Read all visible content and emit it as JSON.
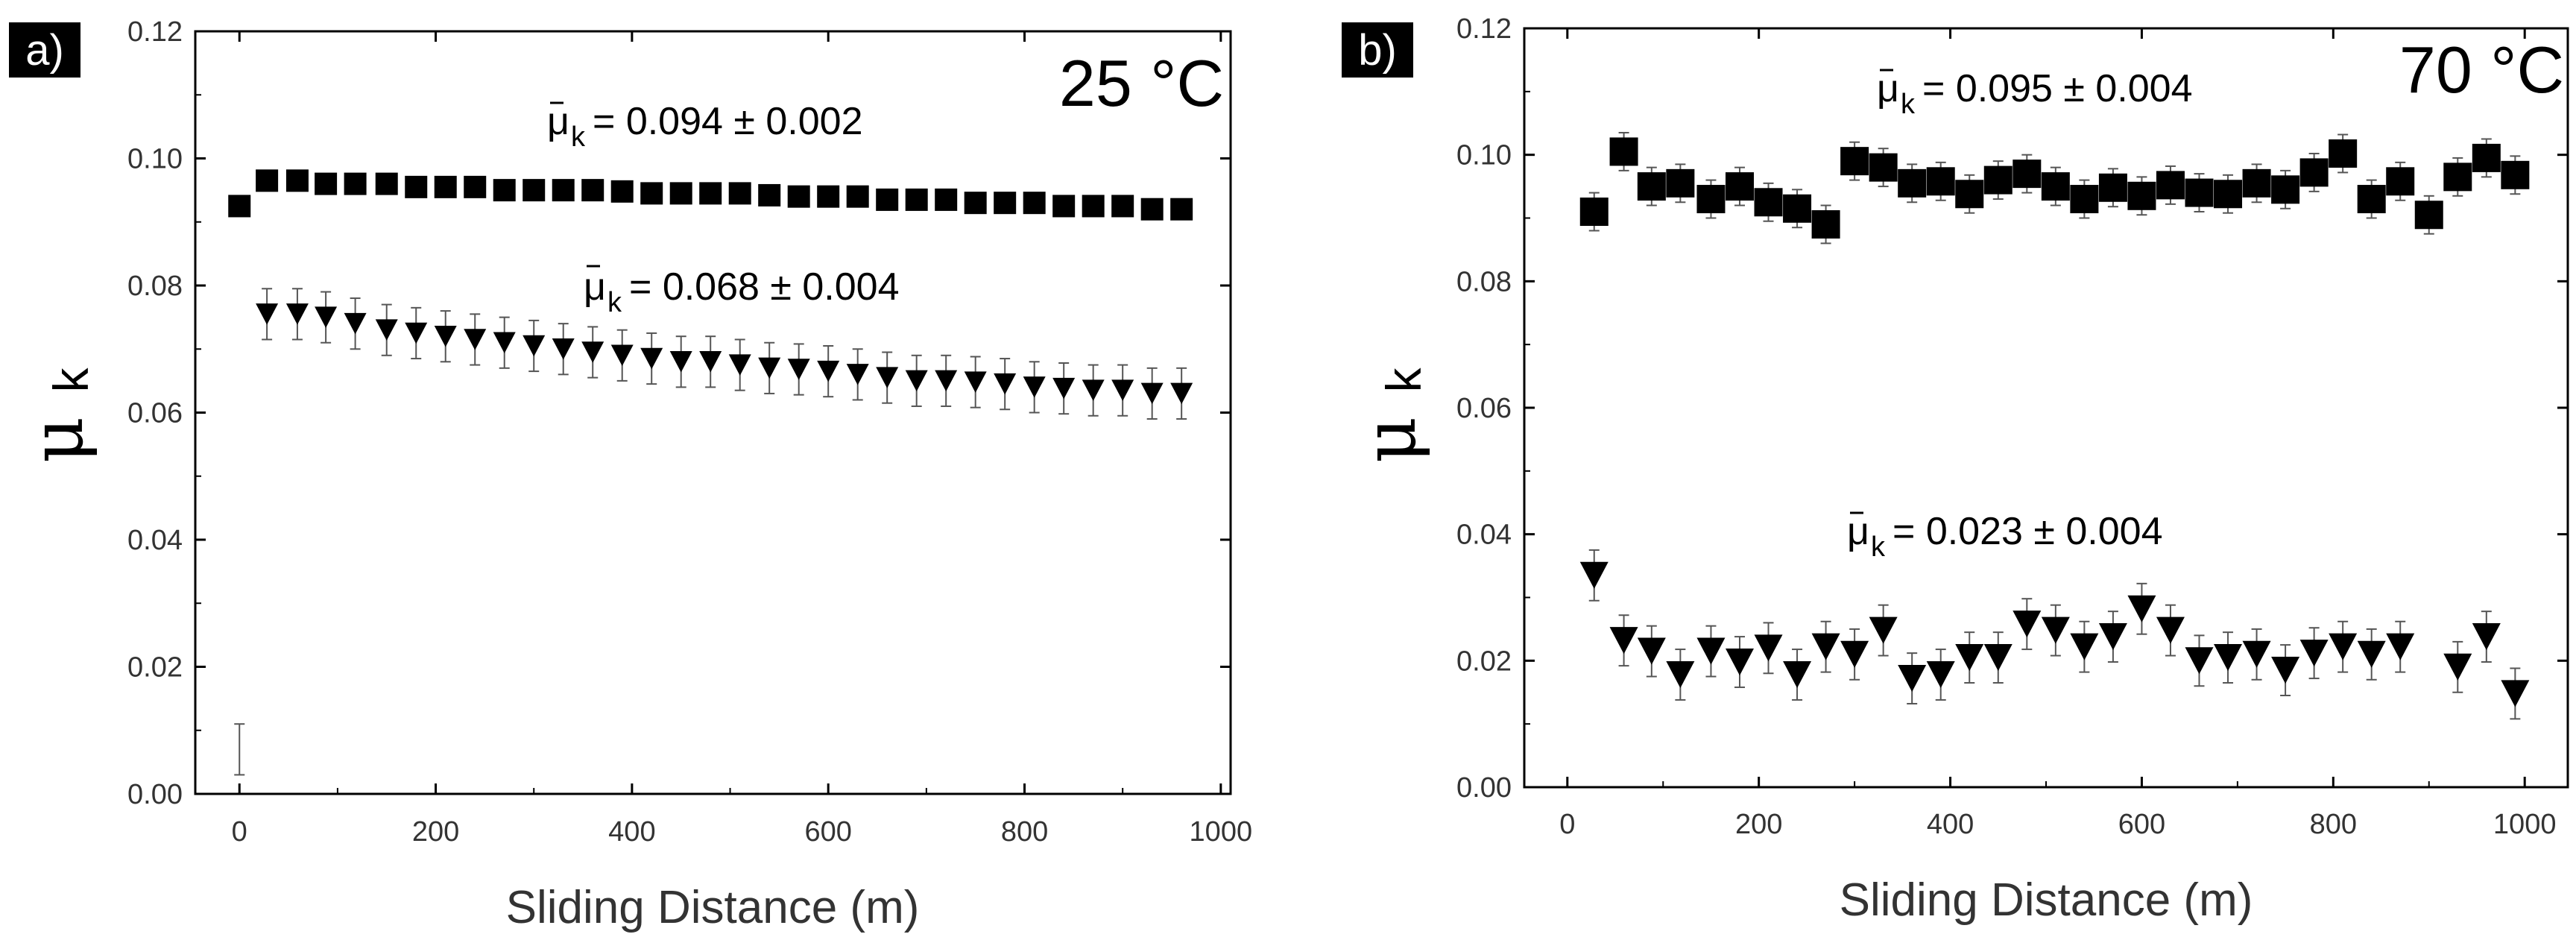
{
  "chart_data": [
    {
      "type": "scatter",
      "panel_label": "a)",
      "temperature_label": "25 °C",
      "xlabel": "Sliding Distance (m)",
      "ylabel": "μ",
      "ylabel_sub": "k",
      "xlim": [
        -45,
        1010
      ],
      "ylim": [
        0.0,
        0.12
      ],
      "xticks": [
        "0",
        "200",
        "400",
        "600",
        "800",
        "1000"
      ],
      "yticks": [
        "0.00",
        "0.02",
        "0.04",
        "0.06",
        "0.08",
        "0.10",
        "0.12"
      ],
      "series": [
        {
          "name": "squares",
          "marker": "square",
          "annotation_sym": "μ",
          "annotation_sub": "k",
          "annotation_value": "= 0.094 ± 0.002",
          "x": [
            0,
            28,
            59,
            88,
            118,
            150,
            180,
            210,
            240,
            270,
            300,
            330,
            360,
            390,
            420,
            450,
            480,
            510,
            540,
            570,
            600,
            630,
            660,
            690,
            720,
            750,
            780,
            810,
            840,
            870,
            900,
            930,
            960
          ],
          "y": [
            0.0925,
            0.0965,
            0.0965,
            0.096,
            0.096,
            0.096,
            0.0955,
            0.0955,
            0.0955,
            0.095,
            0.095,
            0.095,
            0.095,
            0.0948,
            0.0945,
            0.0945,
            0.0945,
            0.0945,
            0.0942,
            0.094,
            0.094,
            0.094,
            0.0935,
            0.0935,
            0.0935,
            0.093,
            0.093,
            0.093,
            0.0925,
            0.0925,
            0.0925,
            0.092,
            0.092
          ],
          "err": [
            0.0005,
            0.0005,
            0.0005,
            0.0005,
            0.0005,
            0.0005,
            0.0005,
            0.0005,
            0.0005,
            0.0005,
            0.0005,
            0.0005,
            0.0005,
            0.0005,
            0.0005,
            0.0005,
            0.0005,
            0.0005,
            0.0005,
            0.0005,
            0.0005,
            0.0005,
            0.0005,
            0.0005,
            0.0005,
            0.0005,
            0.0005,
            0.0005,
            0.0005,
            0.0005,
            0.0005,
            0.0005,
            0.0005
          ]
        },
        {
          "name": "triangles",
          "marker": "triangle-down",
          "annotation_sym": "μ",
          "annotation_sub": "k",
          "annotation_value": "= 0.068 ± 0.004",
          "x": [
            0,
            28,
            59,
            88,
            118,
            150,
            180,
            210,
            240,
            270,
            300,
            330,
            360,
            390,
            420,
            450,
            480,
            510,
            540,
            570,
            600,
            630,
            660,
            690,
            720,
            750,
            780,
            810,
            840,
            870,
            900,
            930,
            960
          ],
          "y": [
            0.007,
            0.0755,
            0.0755,
            0.075,
            0.074,
            0.073,
            0.0725,
            0.072,
            0.0715,
            0.071,
            0.0705,
            0.07,
            0.0695,
            0.069,
            0.0685,
            0.068,
            0.068,
            0.0675,
            0.067,
            0.0668,
            0.0665,
            0.066,
            0.0655,
            0.065,
            0.065,
            0.0648,
            0.0645,
            0.064,
            0.0638,
            0.0635,
            0.0635,
            0.063,
            0.063
          ],
          "err": [
            0.004,
            0.004,
            0.004,
            0.004,
            0.004,
            0.004,
            0.004,
            0.004,
            0.004,
            0.004,
            0.004,
            0.004,
            0.004,
            0.004,
            0.004,
            0.004,
            0.004,
            0.004,
            0.004,
            0.004,
            0.004,
            0.004,
            0.004,
            0.004,
            0.004,
            0.004,
            0.004,
            0.004,
            0.004,
            0.004,
            0.004,
            0.004,
            0.004
          ],
          "marker_hidden": [
            true,
            false,
            false,
            false,
            false,
            false,
            false,
            false,
            false,
            false,
            false,
            false,
            false,
            false,
            false,
            false,
            false,
            false,
            false,
            false,
            false,
            false,
            false,
            false,
            false,
            false,
            false,
            false,
            false,
            false,
            false,
            false,
            false
          ]
        }
      ]
    },
    {
      "type": "scatter",
      "panel_label": "b)",
      "temperature_label": "70 °C",
      "xlabel": "Sliding Distance (m)",
      "ylabel": "μ",
      "ylabel_sub": "k",
      "xlim": [
        -45,
        1045
      ],
      "ylim": [
        0.0,
        0.12
      ],
      "xticks": [
        "0",
        "200",
        "400",
        "600",
        "800",
        "1000"
      ],
      "yticks": [
        "0.00",
        "0.02",
        "0.04",
        "0.06",
        "0.08",
        "0.10",
        "0.12"
      ],
      "series": [
        {
          "name": "squares",
          "marker": "square",
          "annotation_sym": "μ",
          "annotation_sub": "k",
          "annotation_value": "= 0.095 ± 0.004",
          "x": [
            28,
            59,
            88,
            118,
            150,
            180,
            210,
            240,
            270,
            300,
            330,
            360,
            390,
            420,
            450,
            480,
            510,
            540,
            570,
            600,
            630,
            660,
            690,
            720,
            750,
            780,
            810,
            840,
            870,
            900,
            930,
            960,
            990
          ],
          "y": [
            0.091,
            0.1005,
            0.095,
            0.0955,
            0.093,
            0.095,
            0.0925,
            0.0915,
            0.089,
            0.099,
            0.098,
            0.0955,
            0.0958,
            0.0938,
            0.096,
            0.097,
            0.095,
            0.093,
            0.0948,
            0.0935,
            0.0952,
            0.094,
            0.0938,
            0.0955,
            0.0945,
            0.0972,
            0.1002,
            0.093,
            0.0958,
            0.0905,
            0.0965,
            0.0995,
            0.0968
          ],
          "err": [
            0.003,
            0.003,
            0.003,
            0.003,
            0.003,
            0.003,
            0.003,
            0.003,
            0.003,
            0.003,
            0.003,
            0.003,
            0.003,
            0.003,
            0.003,
            0.003,
            0.003,
            0.003,
            0.003,
            0.003,
            0.003,
            0.003,
            0.003,
            0.003,
            0.003,
            0.003,
            0.003,
            0.003,
            0.003,
            0.003,
            0.003,
            0.003,
            0.003
          ]
        },
        {
          "name": "triangles",
          "marker": "triangle-down",
          "annotation_sym": "μ",
          "annotation_sub": "k",
          "annotation_value": "= 0.023 ± 0.004",
          "x": [
            28,
            59,
            88,
            118,
            150,
            180,
            210,
            240,
            270,
            300,
            330,
            360,
            390,
            420,
            450,
            480,
            510,
            540,
            570,
            600,
            630,
            660,
            690,
            720,
            750,
            780,
            810,
            840,
            870,
            930,
            960,
            990
          ],
          "y": [
            0.0335,
            0.0232,
            0.0215,
            0.0178,
            0.0215,
            0.0198,
            0.022,
            0.0178,
            0.0222,
            0.021,
            0.0248,
            0.0172,
            0.0178,
            0.0205,
            0.0205,
            0.0258,
            0.0248,
            0.0222,
            0.0238,
            0.0282,
            0.0248,
            0.02,
            0.0205,
            0.021,
            0.0185,
            0.0212,
            0.0222,
            0.021,
            0.0222,
            0.019,
            0.0238,
            0.0148
          ],
          "err": [
            0.004,
            0.004,
            0.004,
            0.004,
            0.004,
            0.004,
            0.004,
            0.004,
            0.004,
            0.004,
            0.004,
            0.004,
            0.004,
            0.004,
            0.004,
            0.004,
            0.004,
            0.004,
            0.004,
            0.004,
            0.004,
            0.004,
            0.004,
            0.004,
            0.004,
            0.004,
            0.004,
            0.004,
            0.004,
            0.004,
            0.004,
            0.004
          ]
        }
      ]
    }
  ]
}
